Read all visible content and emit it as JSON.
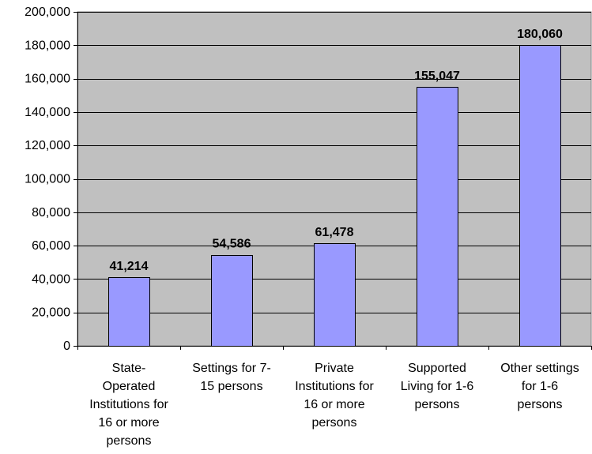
{
  "chart_data": {
    "type": "bar",
    "categories": [
      "State-Operated Institutions for 16 or more persons",
      "Settings for 7-15 persons",
      "Private Institutions for 16 or more persons",
      "Supported Living for 1-6 persons",
      "Other settings for 1-6 persons"
    ],
    "category_lines": [
      [
        "State-",
        "Operated",
        "Institutions for",
        "16 or more",
        "persons"
      ],
      [
        "Settings for 7-",
        "15 persons"
      ],
      [
        "Private",
        "Institutions for",
        "16 or more",
        "persons"
      ],
      [
        "Supported",
        "Living for 1-6",
        "persons"
      ],
      [
        "Other settings",
        "for 1-6",
        "persons"
      ]
    ],
    "values": [
      41214,
      54586,
      61478,
      155047,
      180060
    ],
    "data_labels": [
      "41,214",
      "54,586",
      "61,478",
      "155,047",
      "180,060"
    ],
    "title": "",
    "xlabel": "",
    "ylabel": "",
    "ylim": [
      0,
      200000
    ],
    "yticks": [
      0,
      20000,
      40000,
      60000,
      80000,
      100000,
      120000,
      140000,
      160000,
      180000,
      200000
    ],
    "ytick_labels": [
      "0",
      "20,000",
      "40,000",
      "60,000",
      "80,000",
      "100,000",
      "120,000",
      "140,000",
      "160,000",
      "180,000",
      "200,000"
    ],
    "grid": true,
    "legend": "none",
    "colors": {
      "plot_background": "#c0c0c0",
      "bar_fill": "#9999ff",
      "bar_stroke": "#000000",
      "grid": "#000000"
    }
  }
}
